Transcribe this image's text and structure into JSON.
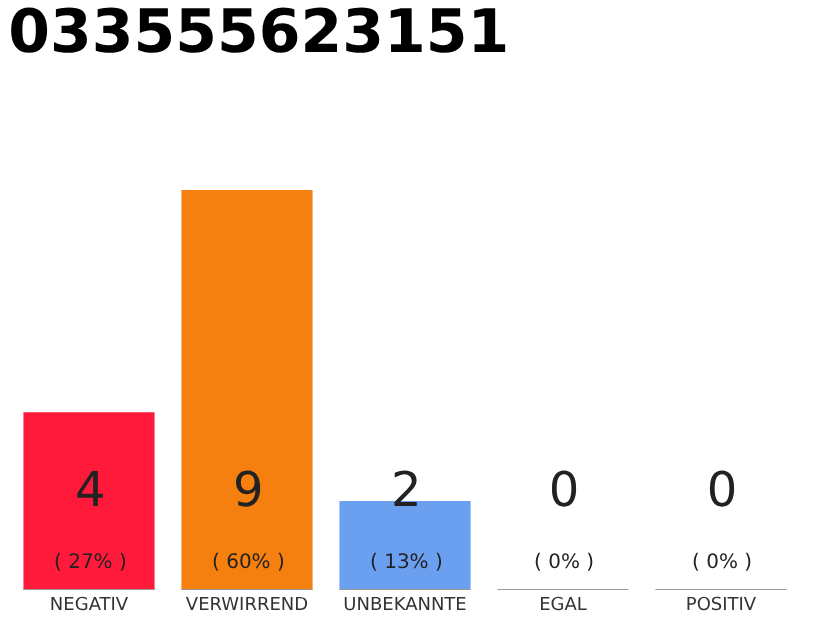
{
  "chart_data": {
    "type": "bar",
    "title": "033555623151",
    "categories": [
      "NEGATIV",
      "VERWIRREND",
      "UNBEKANNTE",
      "EGAL",
      "POSITIV"
    ],
    "values": [
      4,
      9,
      2,
      0,
      0
    ],
    "colors": [
      "#ff1a3c",
      "#f57f0f",
      "#6b9ff0",
      "#6b9ff0",
      "#6b9ff0"
    ],
    "ylim": [
      0,
      9
    ],
    "tick_labels": "x",
    "legend": false,
    "value_labels": [
      "4 ( 27% )",
      "9 ( 60% )",
      "2 ( 13% )",
      "0 ( 0% )",
      "0 ( 0% )"
    ]
  }
}
